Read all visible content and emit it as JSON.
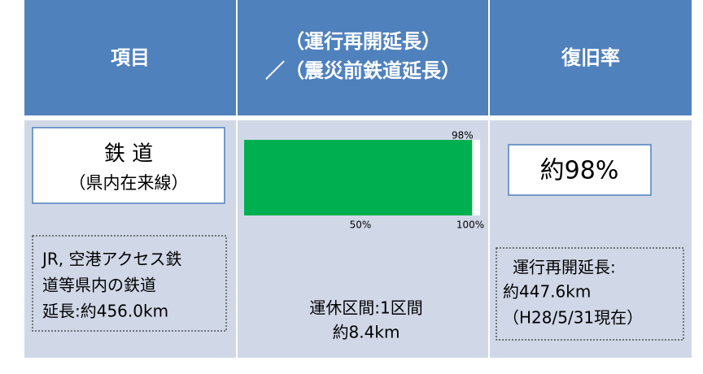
{
  "header": {
    "col1": "項目",
    "col2": [
      "（運行再開延長）",
      "／（震災前鉄道延長）"
    ],
    "col3": "復旧率"
  },
  "railway": {
    "name": "鉄 道",
    "sub": "（県内在来線）",
    "note": [
      "JR, 空港アクセス鉄",
      "道等県内の鉄道",
      "延長:約456.0km"
    ]
  },
  "chart_data": {
    "type": "bar",
    "values": [
      98
    ],
    "value_labels": [
      "98%"
    ],
    "xlim": [
      0,
      100
    ],
    "xticks": [
      {
        "value": 50,
        "label": "50%"
      },
      {
        "value": 100,
        "label": "100%"
      }
    ],
    "color": "#00b050",
    "annotations": [
      "運休区間:1区間",
      "約8.4km"
    ]
  },
  "rate": {
    "value": "約98%",
    "note": [
      "運行再開延長:",
      "約447.6km",
      "（H28/5/31現在）"
    ]
  }
}
